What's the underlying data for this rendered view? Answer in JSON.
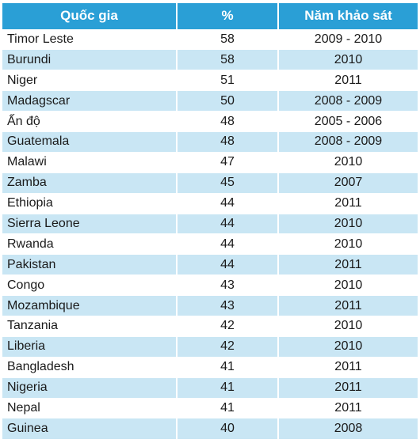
{
  "headers": [
    "Quốc gia",
    "%",
    "Năm khảo sát"
  ],
  "colors": {
    "header_bg": "#2a9fd6",
    "alt_row_bg": "#c9e6f4"
  },
  "rows": [
    {
      "country": "Timor Leste",
      "percent": "58",
      "year": "2009 - 2010"
    },
    {
      "country": "Burundi",
      "percent": "58",
      "year": "2010"
    },
    {
      "country": "Niger",
      "percent": "51",
      "year": "2011"
    },
    {
      "country": "Madagscar",
      "percent": "50",
      "year": "2008 - 2009"
    },
    {
      "country": "Ấn độ",
      "percent": "48",
      "year": "2005 - 2006"
    },
    {
      "country": "Guatemala",
      "percent": "48",
      "year": "2008 - 2009"
    },
    {
      "country": "Malawi",
      "percent": "47",
      "year": "2010"
    },
    {
      "country": "Zamba",
      "percent": "45",
      "year": "2007"
    },
    {
      "country": "Ethiopia",
      "percent": "44",
      "year": "2011"
    },
    {
      "country": "Sierra Leone",
      "percent": "44",
      "year": "2010"
    },
    {
      "country": "Rwanda",
      "percent": "44",
      "year": "2010"
    },
    {
      "country": "Pakistan",
      "percent": "44",
      "year": "2011"
    },
    {
      "country": "Congo",
      "percent": "43",
      "year": "2010"
    },
    {
      "country": "Mozambique",
      "percent": "43",
      "year": "2011"
    },
    {
      "country": "Tanzania",
      "percent": "42",
      "year": "2010"
    },
    {
      "country": "Liberia",
      "percent": "42",
      "year": "2010"
    },
    {
      "country": "Bangladesh",
      "percent": "41",
      "year": "2011"
    },
    {
      "country": "Nigeria",
      "percent": "41",
      "year": "2011"
    },
    {
      "country": "Nepal",
      "percent": "41",
      "year": "2011"
    },
    {
      "country": "Guinea",
      "percent": "40",
      "year": "2008"
    }
  ]
}
